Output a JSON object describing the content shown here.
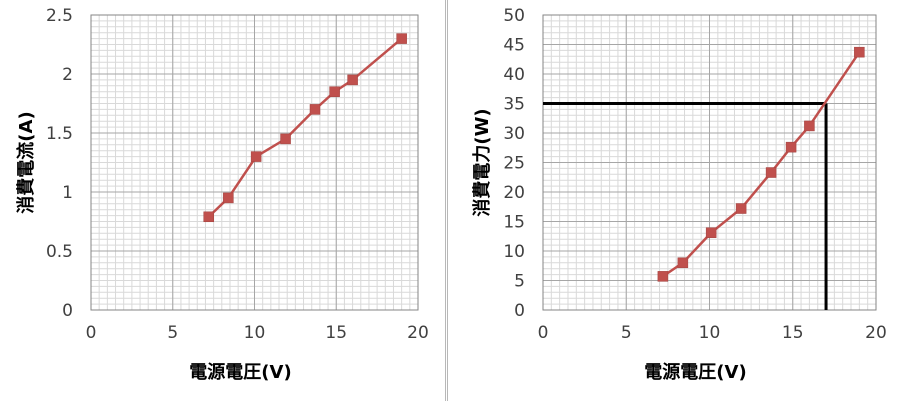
{
  "chart_data": [
    {
      "type": "line",
      "xlabel": "電源電圧(V)",
      "ylabel": "消費電流(A)",
      "xlim": [
        0,
        20
      ],
      "ylim": [
        0,
        2.5
      ],
      "x_ticks": [
        "0",
        "5",
        "10",
        "15",
        "20"
      ],
      "y_ticks": [
        "0",
        "0.5",
        "1",
        "1.5",
        "2",
        "2.5"
      ],
      "grid": true,
      "legend": "none",
      "series_color": "#c0504d",
      "series": [
        {
          "x": [
            7.2,
            8.4,
            10.1,
            11.9,
            13.7,
            14.9,
            16.0,
            19.0
          ],
          "y": [
            0.79,
            0.95,
            1.3,
            1.45,
            1.7,
            1.85,
            1.95,
            2.3
          ]
        }
      ]
    },
    {
      "type": "line",
      "xlabel": "電源電圧(V)",
      "ylabel": "消費電力(W)",
      "xlim": [
        0,
        20
      ],
      "ylim": [
        0,
        50
      ],
      "x_ticks": [
        "0",
        "5",
        "10",
        "15",
        "20"
      ],
      "y_ticks": [
        "0",
        "5",
        "10",
        "15",
        "20",
        "25",
        "30",
        "35",
        "40",
        "45",
        "50"
      ],
      "grid": true,
      "legend": "none",
      "series_color": "#c0504d",
      "series": [
        {
          "x": [
            7.2,
            8.4,
            10.1,
            11.9,
            13.7,
            14.9,
            16.0,
            19.0
          ],
          "y": [
            5.7,
            8.0,
            13.1,
            17.2,
            23.3,
            27.6,
            31.2,
            43.7
          ]
        }
      ],
      "reference_lines": [
        {
          "orientation": "horizontal",
          "value": 35,
          "from_x": 0,
          "to_x": 17
        },
        {
          "orientation": "vertical",
          "value": 17,
          "from_y": 0,
          "to_y": 35
        }
      ]
    }
  ]
}
